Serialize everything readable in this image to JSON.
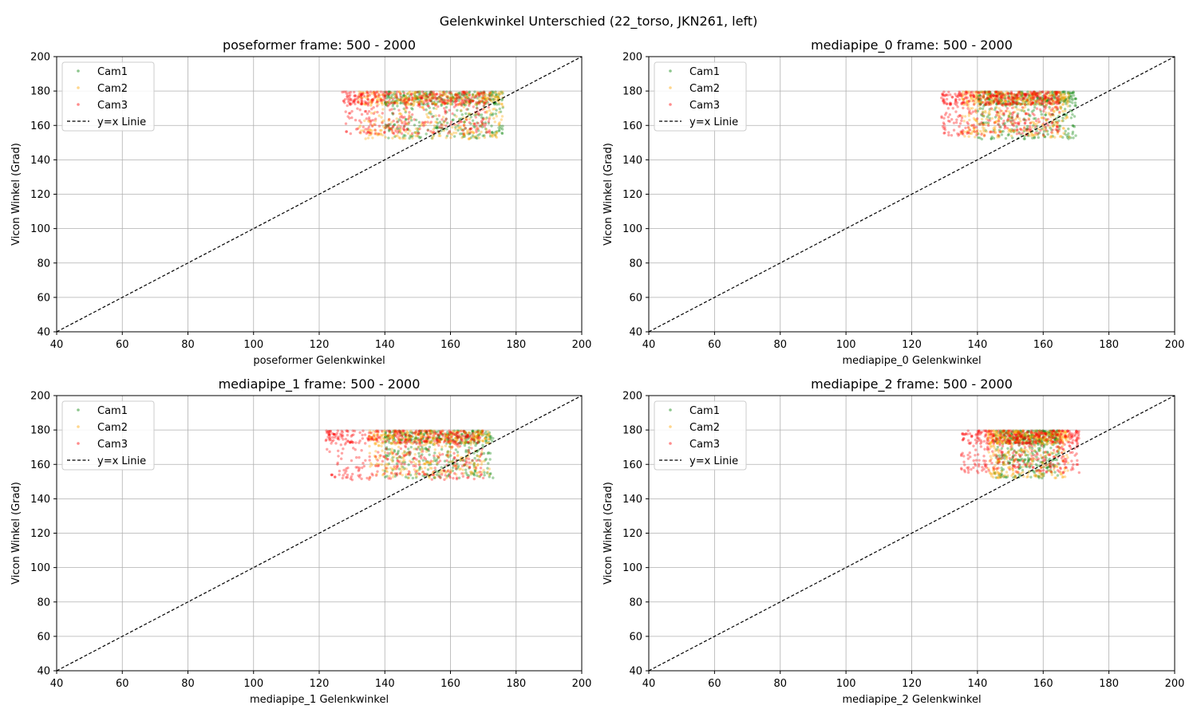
{
  "figure": {
    "suptitle": "Gelenkwinkel Unterschied (22_torso, JKN261, left)"
  },
  "legend_labels": [
    "Cam1",
    "Cam2",
    "Cam3",
    "y=x Linie"
  ],
  "colors": {
    "Cam1": "#008000",
    "Cam2": "#ffa500",
    "Cam3": "#ff0000",
    "identity_line": "#000000",
    "grid": "#b0b0b0"
  },
  "chart_data": [
    {
      "type": "scatter",
      "title": "poseformer frame: 500 - 2000",
      "xlabel": "poseformer Gelenkwinkel",
      "ylabel": "Vicon Winkel (Grad)",
      "xlim": [
        40,
        200
      ],
      "ylim": [
        40,
        200
      ],
      "xticks": [
        40,
        60,
        80,
        100,
        120,
        140,
        160,
        180,
        200
      ],
      "yticks": [
        40,
        60,
        80,
        100,
        120,
        140,
        160,
        180,
        200
      ],
      "grid": true,
      "legend": "upper-left",
      "identity_line": "y=x Linie",
      "series": [
        {
          "name": "Cam1",
          "clusters": [
            {
              "x": [
                140,
                176
              ],
              "y": [
                152,
                180
              ],
              "n": 420
            }
          ]
        },
        {
          "name": "Cam2",
          "clusters": [
            {
              "x": [
                132,
                176
              ],
              "y": [
                152,
                180
              ],
              "n": 460
            }
          ]
        },
        {
          "name": "Cam3",
          "clusters": [
            {
              "x": [
                127,
                172
              ],
              "y": [
                155,
                180
              ],
              "n": 460
            }
          ]
        }
      ]
    },
    {
      "type": "scatter",
      "title": "mediapipe_0 frame: 500 - 2000",
      "xlabel": "mediapipe_0 Gelenkwinkel",
      "ylabel": "Vicon Winkel (Grad)",
      "xlim": [
        40,
        200
      ],
      "ylim": [
        40,
        200
      ],
      "xticks": [
        40,
        60,
        80,
        100,
        120,
        140,
        160,
        180,
        200
      ],
      "yticks": [
        40,
        60,
        80,
        100,
        120,
        140,
        160,
        180,
        200
      ],
      "grid": true,
      "legend": "upper-left",
      "identity_line": "y=x Linie",
      "series": [
        {
          "name": "Cam1",
          "clusters": [
            {
              "x": [
                140,
                170
              ],
              "y": [
                152,
                180
              ],
              "n": 420
            }
          ]
        },
        {
          "name": "Cam2",
          "clusters": [
            {
              "x": [
                135,
                168
              ],
              "y": [
                153,
                180
              ],
              "n": 460
            }
          ]
        },
        {
          "name": "Cam3",
          "clusters": [
            {
              "x": [
                129,
                165
              ],
              "y": [
                154,
                180
              ],
              "n": 480
            }
          ]
        }
      ]
    },
    {
      "type": "scatter",
      "title": "mediapipe_1 frame: 500 - 2000",
      "xlabel": "mediapipe_1 Gelenkwinkel",
      "ylabel": "Vicon Winkel (Grad)",
      "xlim": [
        40,
        200
      ],
      "ylim": [
        40,
        200
      ],
      "xticks": [
        40,
        60,
        80,
        100,
        120,
        140,
        160,
        180,
        200
      ],
      "yticks": [
        40,
        60,
        80,
        100,
        120,
        140,
        160,
        180,
        200
      ],
      "grid": true,
      "legend": "upper-left",
      "identity_line": "y=x Linie",
      "series": [
        {
          "name": "Cam1",
          "clusters": [
            {
              "x": [
                140,
                173
              ],
              "y": [
                152,
                180
              ],
              "n": 420
            }
          ]
        },
        {
          "name": "Cam2",
          "clusters": [
            {
              "x": [
                135,
                172
              ],
              "y": [
                152,
                180
              ],
              "n": 460
            }
          ]
        },
        {
          "name": "Cam3",
          "clusters": [
            {
              "x": [
                122,
                170
              ],
              "y": [
                151,
                180
              ],
              "n": 480
            }
          ]
        }
      ]
    },
    {
      "type": "scatter",
      "title": "mediapipe_2 frame: 500 - 2000",
      "xlabel": "mediapipe_2 Gelenkwinkel",
      "ylabel": "Vicon Winkel (Grad)",
      "xlim": [
        40,
        200
      ],
      "ylim": [
        40,
        200
      ],
      "xticks": [
        40,
        60,
        80,
        100,
        120,
        140,
        160,
        180,
        200
      ],
      "yticks": [
        40,
        60,
        80,
        100,
        120,
        140,
        160,
        180,
        200
      ],
      "grid": true,
      "legend": "upper-left",
      "identity_line": "y=x Linie",
      "series": [
        {
          "name": "Cam1",
          "clusters": [
            {
              "x": [
                145,
                165
              ],
              "y": [
                152,
                180
              ],
              "n": 420
            }
          ]
        },
        {
          "name": "Cam2",
          "clusters": [
            {
              "x": [
                143,
                168
              ],
              "y": [
                152,
                180
              ],
              "n": 460
            }
          ]
        },
        {
          "name": "Cam3",
          "clusters": [
            {
              "x": [
                135,
                171
              ],
              "y": [
                155,
                180
              ],
              "n": 480
            }
          ]
        }
      ]
    }
  ]
}
